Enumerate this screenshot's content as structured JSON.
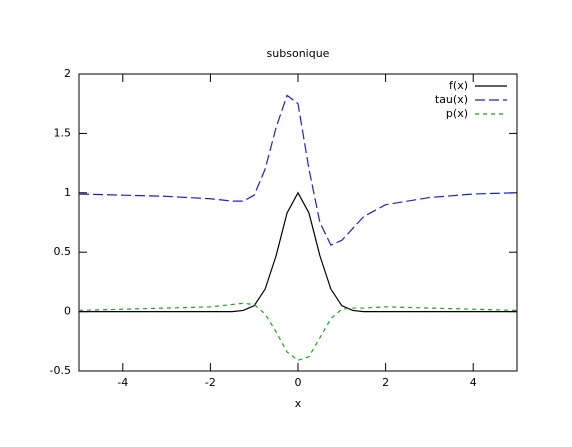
{
  "chart_data": {
    "type": "line",
    "title": "subsonique",
    "xlabel": "x",
    "x": [
      -5,
      -4,
      -3,
      -2,
      -1.5,
      -1.25,
      -1,
      -0.75,
      -0.5,
      -0.25,
      0,
      0.25,
      0.5,
      0.75,
      1,
      1.25,
      1.5,
      2,
      3,
      4,
      5
    ],
    "series": [
      {
        "name": "f(x)",
        "color": "#000000",
        "values": [
          0,
          0,
          0,
          0,
          0,
          0.01,
          0.05,
          0.19,
          0.47,
          0.83,
          1,
          0.83,
          0.47,
          0.19,
          0.05,
          0.01,
          0,
          0,
          0,
          0,
          0
        ]
      },
      {
        "name": "tau(x)",
        "color": "#2020d0",
        "values": [
          0.99,
          0.98,
          0.97,
          0.95,
          0.93,
          0.93,
          0.98,
          1.2,
          1.55,
          1.82,
          1.75,
          1.2,
          0.75,
          0.56,
          0.6,
          0.7,
          0.8,
          0.9,
          0.96,
          0.99,
          1.0
        ]
      },
      {
        "name": "p(x)",
        "color": "#20a020",
        "values": [
          0.01,
          0.02,
          0.03,
          0.04,
          0.06,
          0.07,
          0.06,
          -0.02,
          -0.17,
          -0.34,
          -0.41,
          -0.38,
          -0.22,
          -0.06,
          0.02,
          0.03,
          0.03,
          0.04,
          0.03,
          0.02,
          0.01
        ]
      }
    ],
    "xlim": [
      -5,
      5
    ],
    "xticks": [
      -4,
      -2,
      0,
      2,
      4
    ],
    "ylim": [
      -0.5,
      2
    ],
    "yticks": [
      -0.5,
      0,
      0.5,
      1,
      1.5,
      2
    ],
    "grid": false,
    "legend": "top-right"
  }
}
